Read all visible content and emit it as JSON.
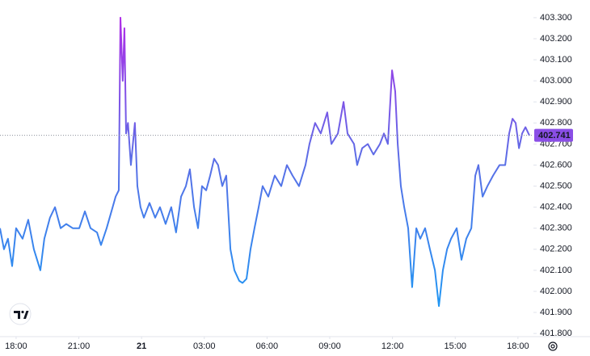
{
  "chart_data": {
    "type": "line",
    "x": [
      17.23,
      17.42,
      17.61,
      17.81,
      18.0,
      18.31,
      18.58,
      18.85,
      19.16,
      19.35,
      19.62,
      19.86,
      20.13,
      20.4,
      20.71,
      21.02,
      21.29,
      21.56,
      21.87,
      22.06,
      22.33,
      22.56,
      22.76,
      22.91,
      22.99,
      23.1,
      23.18,
      23.26,
      23.35,
      23.49,
      23.68,
      23.8,
      23.95,
      24.11,
      24.38,
      24.65,
      24.88,
      25.15,
      25.42,
      25.65,
      25.89,
      26.12,
      26.31,
      26.51,
      26.7,
      26.89,
      27.09,
      27.28,
      27.47,
      27.66,
      27.86,
      28.05,
      28.25,
      28.44,
      28.67,
      28.83,
      29.02,
      29.21,
      29.4,
      29.6,
      29.79,
      30.06,
      30.37,
      30.68,
      30.95,
      31.22,
      31.53,
      31.84,
      32.03,
      32.3,
      32.57,
      32.88,
      33.08,
      33.39,
      33.66,
      33.85,
      34.16,
      34.31,
      34.55,
      34.82,
      35.09,
      35.4,
      35.59,
      35.78,
      35.98,
      36.13,
      36.25,
      36.4,
      36.56,
      36.75,
      36.94,
      37.14,
      37.33,
      37.56,
      37.79,
      38.03,
      38.22,
      38.41,
      38.61,
      38.8,
      39.07,
      39.3,
      39.53,
      39.77,
      39.96,
      40.11,
      40.31,
      40.54,
      40.81,
      41.12,
      41.39,
      41.58,
      41.74,
      41.89,
      42.05,
      42.2,
      42.36,
      42.55
    ],
    "series": [
      {
        "values": [
          402.3,
          402.2,
          402.25,
          402.12,
          402.3,
          402.25,
          402.34,
          402.2,
          402.1,
          402.25,
          402.35,
          402.4,
          402.3,
          402.32,
          402.3,
          402.3,
          402.38,
          402.3,
          402.28,
          402.22,
          402.3,
          402.38,
          402.45,
          402.48,
          403.3,
          403.0,
          403.25,
          402.75,
          402.8,
          402.6,
          402.8,
          402.5,
          402.4,
          402.35,
          402.42,
          402.35,
          402.4,
          402.32,
          402.4,
          402.28,
          402.45,
          402.5,
          402.58,
          402.4,
          402.3,
          402.5,
          402.48,
          402.55,
          402.63,
          402.6,
          402.5,
          402.55,
          402.2,
          402.1,
          402.05,
          402.04,
          402.06,
          402.2,
          402.3,
          402.4,
          402.5,
          402.45,
          402.55,
          402.5,
          402.6,
          402.55,
          402.5,
          402.6,
          402.7,
          402.8,
          402.75,
          402.85,
          402.7,
          402.75,
          402.9,
          402.75,
          402.7,
          402.6,
          402.68,
          402.7,
          402.65,
          402.7,
          402.75,
          402.7,
          403.05,
          402.95,
          402.7,
          402.5,
          402.4,
          402.3,
          402.02,
          402.3,
          402.25,
          402.3,
          402.2,
          402.1,
          401.93,
          402.1,
          402.2,
          402.25,
          402.3,
          402.15,
          402.25,
          402.3,
          402.55,
          402.6,
          402.45,
          402.5,
          402.55,
          402.6,
          402.6,
          402.75,
          402.82,
          402.8,
          402.68,
          402.75,
          402.78,
          402.74
        ]
      }
    ],
    "gradient": [
      "#b02ee8",
      "#5b6ee6",
      "#2196f3"
    ],
    "xlim": [
      17.23,
      42.74
    ],
    "ylim": [
      401.785,
      403.384
    ],
    "xticks": [
      {
        "value": 18,
        "label": "18:00"
      },
      {
        "value": 21,
        "label": "21:00"
      },
      {
        "value": 24,
        "label": "21"
      },
      {
        "value": 27,
        "label": "03:00"
      },
      {
        "value": 30,
        "label": "06:00"
      },
      {
        "value": 33,
        "label": "09:00"
      },
      {
        "value": 36,
        "label": "12:00"
      },
      {
        "value": 39,
        "label": "15:00"
      },
      {
        "value": 42,
        "label": "18:00"
      }
    ],
    "yticks": [
      {
        "value": 403.3,
        "label": "403.300"
      },
      {
        "value": 403.2,
        "label": "403.200"
      },
      {
        "value": 403.1,
        "label": "403.100"
      },
      {
        "value": 403.0,
        "label": "403.000"
      },
      {
        "value": 402.9,
        "label": "402.900"
      },
      {
        "value": 402.8,
        "label": "402.800"
      },
      {
        "value": 402.7,
        "label": "402.700"
      },
      {
        "value": 402.6,
        "label": "402.600"
      },
      {
        "value": 402.5,
        "label": "402.500"
      },
      {
        "value": 402.4,
        "label": "402.400"
      },
      {
        "value": 402.3,
        "label": "402.300"
      },
      {
        "value": 402.2,
        "label": "402.200"
      },
      {
        "value": 402.1,
        "label": "402.100"
      },
      {
        "value": 402.0,
        "label": "402.000"
      },
      {
        "value": 401.9,
        "label": "401.900"
      },
      {
        "value": 401.8,
        "label": "401.800"
      }
    ],
    "last_value": {
      "value": 402.741,
      "label": "402.741",
      "color": "#8a4ee6"
    }
  }
}
